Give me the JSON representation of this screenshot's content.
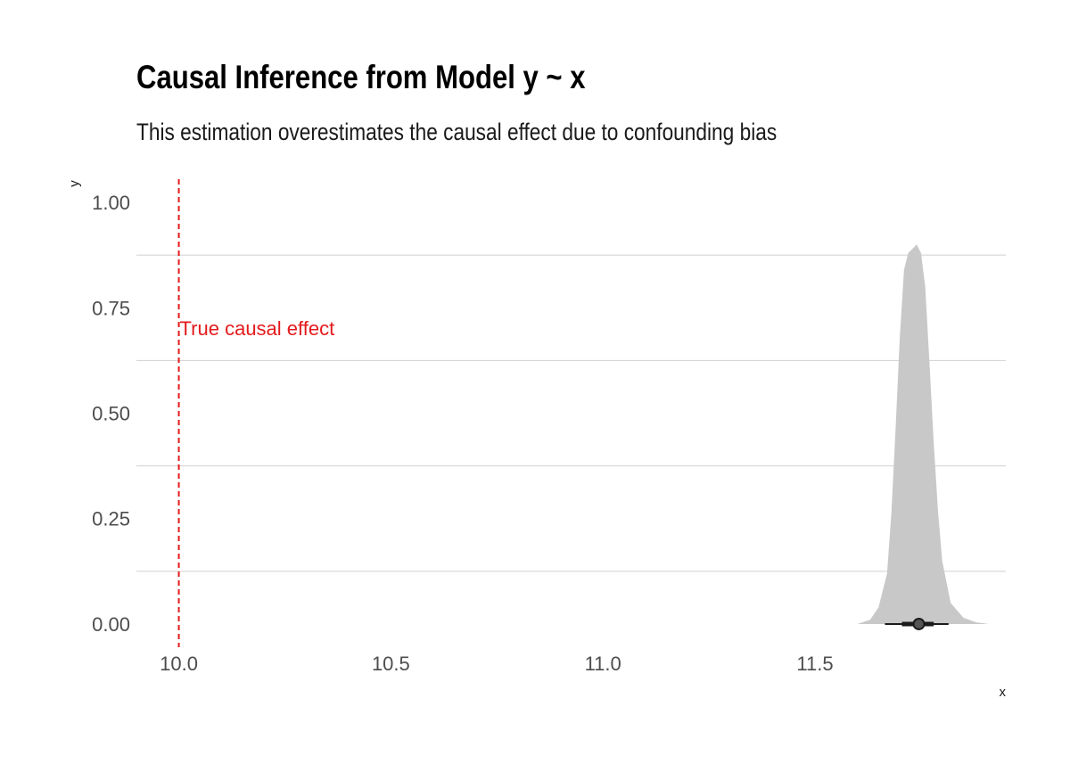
{
  "chart_data": {
    "type": "area",
    "title": "Causal Inference from Model y ~ x",
    "subtitle": "This estimation overestimates the causal effect due to confounding bias",
    "xlabel": "x",
    "ylabel": "y",
    "xlim": [
      9.9,
      11.95
    ],
    "ylim": [
      -0.055,
      1.055
    ],
    "x_ticks": [
      10.0,
      10.5,
      11.0,
      11.5
    ],
    "x_tick_labels": [
      "10.0",
      "10.5",
      "11.0",
      "11.5"
    ],
    "y_ticks": [
      0.0,
      0.25,
      0.5,
      0.75,
      1.0
    ],
    "y_tick_labels": [
      "0.00",
      "0.25",
      "0.50",
      "0.75",
      "1.00"
    ],
    "grid": "horizontal",
    "density": {
      "x": [
        11.6,
        11.63,
        11.65,
        11.67,
        11.68,
        11.69,
        11.7,
        11.71,
        11.72,
        11.73,
        11.74,
        11.75,
        11.76,
        11.77,
        11.78,
        11.79,
        11.8,
        11.82,
        11.85,
        11.88,
        11.91
      ],
      "y": [
        0.0,
        0.01,
        0.04,
        0.12,
        0.26,
        0.46,
        0.68,
        0.84,
        0.88,
        0.89,
        0.9,
        0.88,
        0.8,
        0.62,
        0.43,
        0.27,
        0.15,
        0.05,
        0.015,
        0.004,
        0.0
      ],
      "color": "#c8c8c8"
    },
    "point_interval": {
      "point": 11.745,
      "inner": [
        11.705,
        11.78
      ],
      "outer": [
        11.665,
        11.815
      ],
      "y": 0.0,
      "color": "#1a1a1a"
    },
    "reference_line": {
      "x": 10.0,
      "label": "True causal effect",
      "label_y": 0.7,
      "color": "#e41a1c"
    },
    "grid_color": "#d0d0d0",
    "tick_color": "#4d4d4d"
  }
}
